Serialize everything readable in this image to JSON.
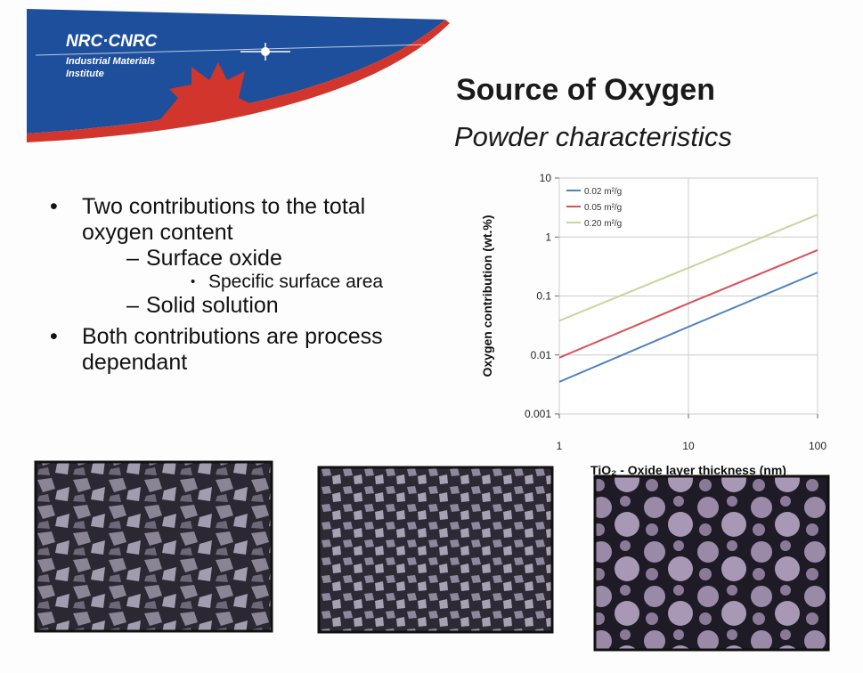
{
  "header": {
    "logo": "NRC·CNRC",
    "institute_line1": "Industrial Materials",
    "institute_line2": "Institute"
  },
  "title": "Source of Oxygen",
  "subtitle": "Powder characteristics",
  "bullets": [
    {
      "text": "Two contributions to the total oxygen content",
      "items": [
        {
          "text": "Surface oxide",
          "items": [
            {
              "text": "Specific surface area"
            }
          ]
        },
        {
          "text": "Solid solution"
        }
      ]
    },
    {
      "text": "Both contributions are process dependant"
    }
  ],
  "chart_data": {
    "type": "line",
    "x": [
      1,
      10,
      100
    ],
    "series": [
      {
        "name": "0.02 m²/g",
        "color": "#4f81bd",
        "values": [
          0.0035,
          0.03,
          0.25
        ]
      },
      {
        "name": "0.05 m²/g",
        "color": "#d9505a",
        "values": [
          0.009,
          0.075,
          0.6
        ]
      },
      {
        "name": "0.20 m²/g",
        "color": "#c4d79b",
        "values": [
          0.038,
          0.3,
          2.4
        ]
      }
    ],
    "xlim": [
      1,
      100
    ],
    "ylim": [
      0.001,
      10
    ],
    "xticks": [
      1,
      10,
      100
    ],
    "yticks": [
      0.001,
      0.01,
      0.1,
      1,
      10
    ],
    "xlog": true,
    "ylog": true,
    "grid": true,
    "legend": "upper left",
    "xlabel": "TiO₂ - Oxide layer thickness (nm)",
    "ylabel": "Oxygen contribution (wt.%)"
  }
}
